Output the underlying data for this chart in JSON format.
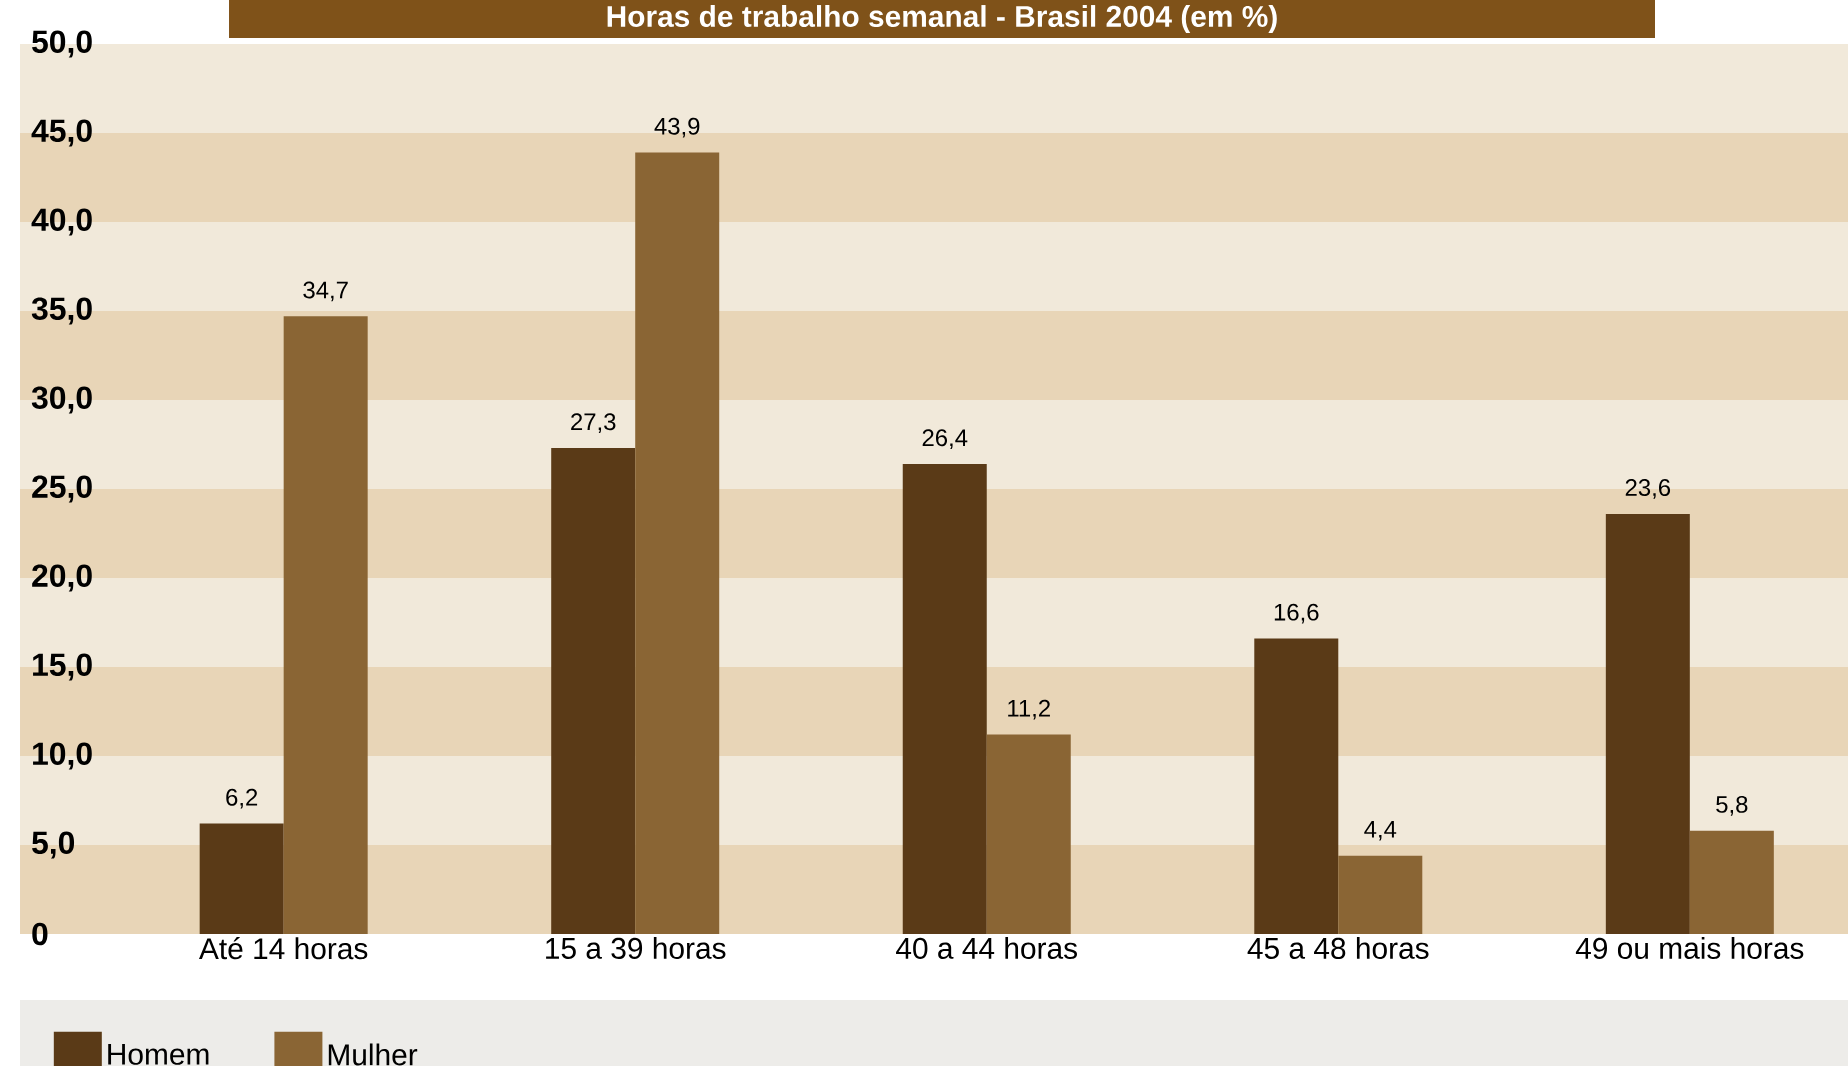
{
  "chart_data": {
    "type": "bar",
    "title": "Horas de trabalho semanal - Brasil 2004 (em %)",
    "categories": [
      "Até 14 horas",
      "15 a 39 horas",
      "40 a 44 horas",
      "45 a 48 horas",
      "49 ou mais horas"
    ],
    "series": [
      {
        "name": "Homem",
        "color": "#5a3a17",
        "values": [
          6.2,
          27.3,
          26.4,
          16.6,
          23.6
        ],
        "value_labels": [
          "6,2",
          "27,3",
          "26,4",
          "16,6",
          "23,6"
        ]
      },
      {
        "name": "Mulher",
        "color": "#8a6534",
        "values": [
          34.7,
          43.9,
          11.2,
          4.4,
          5.8
        ],
        "value_labels": [
          "34,7",
          "43,9",
          "11,2",
          "4,4",
          "5,8"
        ]
      }
    ],
    "ylim": [
      0,
      50
    ],
    "yticks": [
      {
        "value": 0,
        "label": "0"
      },
      {
        "value": 5,
        "label": "5,0"
      },
      {
        "value": 10,
        "label": "10,0"
      },
      {
        "value": 15,
        "label": "15,0"
      },
      {
        "value": 20,
        "label": "20,0"
      },
      {
        "value": 25,
        "label": "25,0"
      },
      {
        "value": 30,
        "label": "30,0"
      },
      {
        "value": 35,
        "label": "35,0"
      },
      {
        "value": 40,
        "label": "40,0"
      },
      {
        "value": 45,
        "label": "45,0"
      },
      {
        "value": 50,
        "label": "50,0"
      }
    ],
    "bands": [
      {
        "axis": "y",
        "from": 0,
        "to": 5,
        "color": "#e8d5b7"
      },
      {
        "axis": "y",
        "from": 5,
        "to": 10,
        "color": "#f1e9da"
      },
      {
        "axis": "y",
        "from": 10,
        "to": 15,
        "color": "#e8d5b7"
      },
      {
        "axis": "y",
        "from": 15,
        "to": 20,
        "color": "#f1e9da"
      },
      {
        "axis": "y",
        "from": 20,
        "to": 25,
        "color": "#e8d5b7"
      },
      {
        "axis": "y",
        "from": 25,
        "to": 30,
        "color": "#f1e9da"
      },
      {
        "axis": "y",
        "from": 30,
        "to": 35,
        "color": "#e8d5b7"
      },
      {
        "axis": "y",
        "from": 35,
        "to": 40,
        "color": "#f1e9da"
      },
      {
        "axis": "y",
        "from": 40,
        "to": 45,
        "color": "#e8d5b7"
      },
      {
        "axis": "y",
        "from": 45,
        "to": 50,
        "color": "#f1e9da"
      }
    ],
    "legend": "bottom left"
  }
}
